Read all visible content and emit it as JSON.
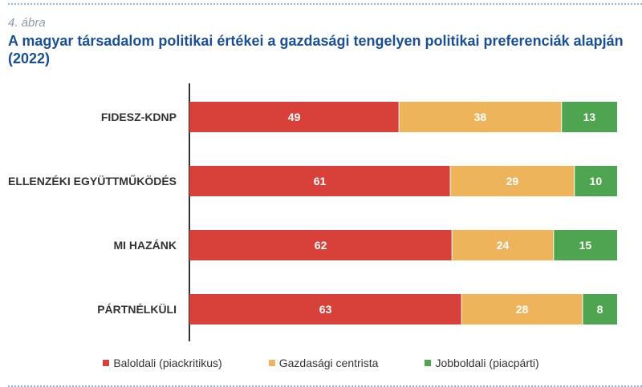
{
  "figure": {
    "number": "4. ábra",
    "title": "A magyar társadalom politikai értékei a gazdasági tengelyen politikai preferenciák alapján (2022)"
  },
  "colors": {
    "baloldali": "#d8413a",
    "centrista": "#edb45c",
    "jobboldali": "#4fa54f",
    "title": "#1a4f91"
  },
  "chart_data": {
    "type": "bar",
    "orientation": "horizontal",
    "stacked": true,
    "categories": [
      "FIDESZ-KDNP",
      "ELLENZÉKI EGYÜTTMŰKÖDÉS",
      "MI HAZÁNK",
      "PÁRTNÉLKÜLI"
    ],
    "series": [
      {
        "name": "Baloldali (piackritikus)",
        "values": [
          49,
          61,
          62,
          63
        ],
        "color": "#d8413a"
      },
      {
        "name": "Gazdasági centrista",
        "values": [
          38,
          29,
          24,
          28
        ],
        "color": "#edb45c"
      },
      {
        "name": "Jobboldali (piacpárti)",
        "values": [
          13,
          10,
          15,
          8
        ],
        "color": "#4fa54f"
      }
    ],
    "legend": "bottom",
    "grid": false
  }
}
